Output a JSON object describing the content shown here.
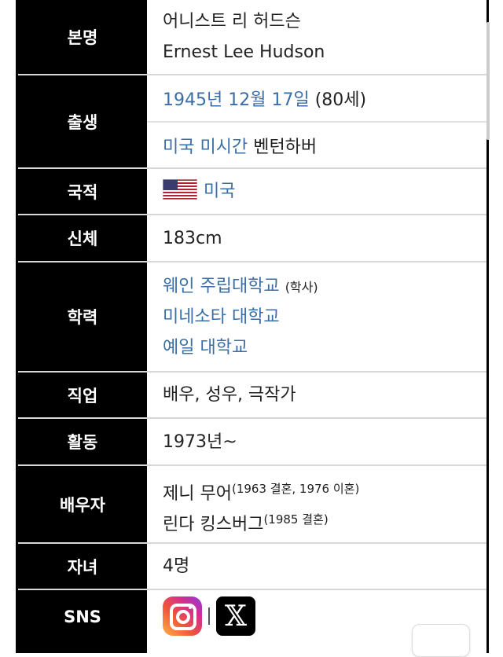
{
  "rows": [
    {
      "label": "본명",
      "lines": [
        "어니스트 리 허드슨",
        "Ernest Lee Hudson"
      ]
    },
    {
      "label": "출생",
      "date_link": "1945년 12월 17일",
      "age": "(80세)",
      "place_link": "미국 미시간",
      "place_text": "벤턴하버"
    },
    {
      "label": "국적",
      "flag_icon": "us-flag-icon",
      "value_link": "미국"
    },
    {
      "label": "신체",
      "value": "183cm"
    },
    {
      "label": "학력",
      "schools": [
        {
          "name": "웨인 주립대학교",
          "note": "(학사)"
        },
        {
          "name": "미네소타 대학교"
        },
        {
          "name": "예일 대학교"
        }
      ]
    },
    {
      "label": "직업",
      "value": "배우, 성우, 극작가"
    },
    {
      "label": "활동",
      "value": "1973년~"
    },
    {
      "label": "배우자",
      "spouses": [
        {
          "name": "제니 무어",
          "note": "(1963 결혼, 1976 이혼)"
        },
        {
          "name": "린다 킹스버그",
          "note": "(1985 결혼)"
        }
      ]
    },
    {
      "label": "자녀",
      "value": "4명"
    },
    {
      "label": "SNS",
      "icons": [
        "instagram-icon",
        "x-icon"
      ],
      "x_glyph": "𝕏"
    }
  ],
  "colors": {
    "label_bg": "#000000",
    "link": "#3a6ea8"
  }
}
